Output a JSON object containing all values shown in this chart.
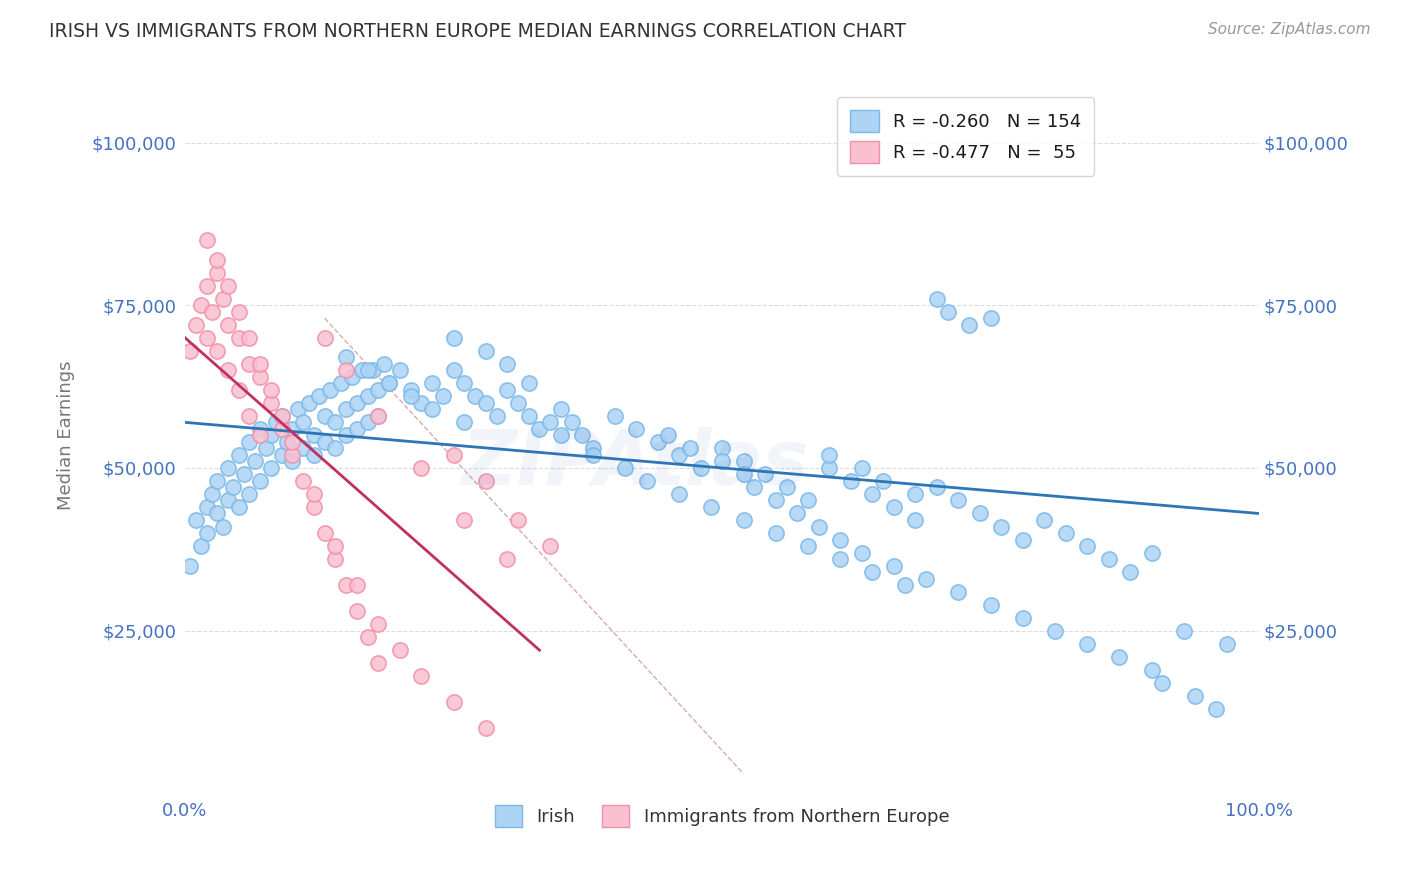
{
  "title": "IRISH VS IMMIGRANTS FROM NORTHERN EUROPE MEDIAN EARNINGS CORRELATION CHART",
  "source": "Source: ZipAtlas.com",
  "ylabel": "Median Earnings",
  "x_min": 0.0,
  "x_max": 1.0,
  "y_min": 0,
  "y_max": 110000,
  "y_ticks": [
    25000,
    50000,
    75000,
    100000
  ],
  "y_tick_labels": [
    "$25,000",
    "$50,000",
    "$75,000",
    "$100,000"
  ],
  "x_ticks": [
    0.0,
    0.1,
    0.2,
    0.3,
    0.4,
    0.5,
    0.6,
    0.7,
    0.8,
    0.9,
    1.0
  ],
  "x_tick_labels": [
    "0.0%",
    "",
    "",
    "",
    "",
    "",
    "",
    "",
    "",
    "",
    "100.0%"
  ],
  "blue_face_color": "#ADD4F5",
  "blue_edge_color": "#7BB8E8",
  "pink_face_color": "#FAC0D0",
  "pink_edge_color": "#F090A8",
  "blue_line_color": "#2E75B6",
  "pink_line_color": "#C03060",
  "diag_line_color": "#DDAAAA",
  "r_blue": -0.26,
  "n_blue": 154,
  "r_pink": -0.477,
  "n_pink": 55,
  "legend_label_blue": "Irish",
  "legend_label_pink": "Immigrants from Northern Europe",
  "watermark": "ZIPAtlas",
  "blue_line_x0": 0.0,
  "blue_line_x1": 1.0,
  "blue_line_y0": 57000,
  "blue_line_y1": 43000,
  "pink_line_x0": 0.0,
  "pink_line_x1": 0.33,
  "pink_line_y0": 70000,
  "pink_line_y1": 22000,
  "diag_line_x0": 0.13,
  "diag_line_x1": 0.52,
  "diag_line_y0": 73000,
  "diag_line_y1": 3000,
  "bg_color": "#FFFFFF",
  "grid_color": "#DDDDDD",
  "tick_color": "#4472C4",
  "title_color": "#333333",
  "ylabel_color": "#777777",
  "source_color": "#999999",
  "legend_r_color": "#E05060",
  "legend_n_color": "#4472C4",
  "blue_scatter_x": [
    0.005,
    0.01,
    0.015,
    0.02,
    0.02,
    0.025,
    0.03,
    0.03,
    0.035,
    0.04,
    0.04,
    0.045,
    0.05,
    0.05,
    0.055,
    0.06,
    0.06,
    0.065,
    0.07,
    0.07,
    0.075,
    0.08,
    0.08,
    0.085,
    0.09,
    0.09,
    0.095,
    0.1,
    0.1,
    0.105,
    0.11,
    0.11,
    0.115,
    0.12,
    0.12,
    0.125,
    0.13,
    0.13,
    0.135,
    0.14,
    0.14,
    0.145,
    0.15,
    0.15,
    0.155,
    0.16,
    0.16,
    0.165,
    0.17,
    0.17,
    0.175,
    0.18,
    0.18,
    0.185,
    0.19,
    0.2,
    0.21,
    0.22,
    0.23,
    0.24,
    0.25,
    0.26,
    0.27,
    0.28,
    0.29,
    0.3,
    0.31,
    0.32,
    0.33,
    0.34,
    0.35,
    0.36,
    0.37,
    0.38,
    0.4,
    0.42,
    0.44,
    0.46,
    0.48,
    0.5,
    0.52,
    0.54,
    0.56,
    0.58,
    0.6,
    0.62,
    0.64,
    0.66,
    0.68,
    0.7,
    0.72,
    0.74,
    0.76,
    0.78,
    0.8,
    0.82,
    0.84,
    0.86,
    0.88,
    0.9,
    0.7,
    0.71,
    0.73,
    0.75,
    0.93,
    0.97,
    0.35,
    0.38,
    0.41,
    0.43,
    0.46,
    0.49,
    0.52,
    0.55,
    0.58,
    0.61,
    0.64,
    0.67,
    0.6,
    0.63,
    0.65,
    0.68,
    0.25,
    0.28,
    0.3,
    0.32,
    0.15,
    0.17,
    0.19,
    0.21,
    0.23,
    0.26,
    0.45,
    0.47,
    0.5,
    0.52,
    0.53,
    0.55,
    0.57,
    0.59,
    0.61,
    0.63,
    0.66,
    0.69,
    0.72,
    0.75,
    0.78,
    0.81,
    0.84,
    0.87,
    0.9,
    0.91,
    0.94,
    0.96
  ],
  "blue_scatter_y": [
    35000,
    42000,
    38000,
    44000,
    40000,
    46000,
    43000,
    48000,
    41000,
    50000,
    45000,
    47000,
    52000,
    44000,
    49000,
    54000,
    46000,
    51000,
    56000,
    48000,
    53000,
    55000,
    50000,
    57000,
    52000,
    58000,
    54000,
    56000,
    51000,
    59000,
    57000,
    53000,
    60000,
    55000,
    52000,
    61000,
    58000,
    54000,
    62000,
    57000,
    53000,
    63000,
    59000,
    55000,
    64000,
    60000,
    56000,
    65000,
    61000,
    57000,
    65000,
    62000,
    58000,
    66000,
    63000,
    65000,
    62000,
    60000,
    63000,
    61000,
    65000,
    63000,
    61000,
    60000,
    58000,
    62000,
    60000,
    58000,
    56000,
    57000,
    59000,
    57000,
    55000,
    53000,
    58000,
    56000,
    54000,
    52000,
    50000,
    53000,
    51000,
    49000,
    47000,
    45000,
    50000,
    48000,
    46000,
    44000,
    42000,
    47000,
    45000,
    43000,
    41000,
    39000,
    42000,
    40000,
    38000,
    36000,
    34000,
    37000,
    76000,
    74000,
    72000,
    73000,
    25000,
    23000,
    55000,
    52000,
    50000,
    48000,
    46000,
    44000,
    42000,
    40000,
    38000,
    36000,
    34000,
    32000,
    52000,
    50000,
    48000,
    46000,
    70000,
    68000,
    66000,
    63000,
    67000,
    65000,
    63000,
    61000,
    59000,
    57000,
    55000,
    53000,
    51000,
    49000,
    47000,
    45000,
    43000,
    41000,
    39000,
    37000,
    35000,
    33000,
    31000,
    29000,
    27000,
    25000,
    23000,
    21000,
    19000,
    17000,
    15000,
    13000
  ],
  "pink_scatter_x": [
    0.005,
    0.01,
    0.015,
    0.02,
    0.02,
    0.025,
    0.03,
    0.03,
    0.035,
    0.04,
    0.04,
    0.05,
    0.05,
    0.06,
    0.06,
    0.07,
    0.07,
    0.08,
    0.09,
    0.1,
    0.11,
    0.12,
    0.13,
    0.14,
    0.15,
    0.16,
    0.17,
    0.18,
    0.02,
    0.03,
    0.04,
    0.05,
    0.06,
    0.07,
    0.08,
    0.09,
    0.1,
    0.12,
    0.14,
    0.16,
    0.18,
    0.2,
    0.22,
    0.25,
    0.13,
    0.15,
    0.18,
    0.22,
    0.26,
    0.3,
    0.25,
    0.28,
    0.31,
    0.34,
    0.28
  ],
  "pink_scatter_y": [
    68000,
    72000,
    75000,
    70000,
    78000,
    74000,
    80000,
    68000,
    76000,
    72000,
    65000,
    70000,
    62000,
    66000,
    58000,
    64000,
    55000,
    60000,
    56000,
    52000,
    48000,
    44000,
    40000,
    36000,
    32000,
    28000,
    24000,
    20000,
    85000,
    82000,
    78000,
    74000,
    70000,
    66000,
    62000,
    58000,
    54000,
    46000,
    38000,
    32000,
    26000,
    22000,
    18000,
    14000,
    70000,
    65000,
    58000,
    50000,
    42000,
    36000,
    52000,
    48000,
    42000,
    38000,
    10000
  ]
}
